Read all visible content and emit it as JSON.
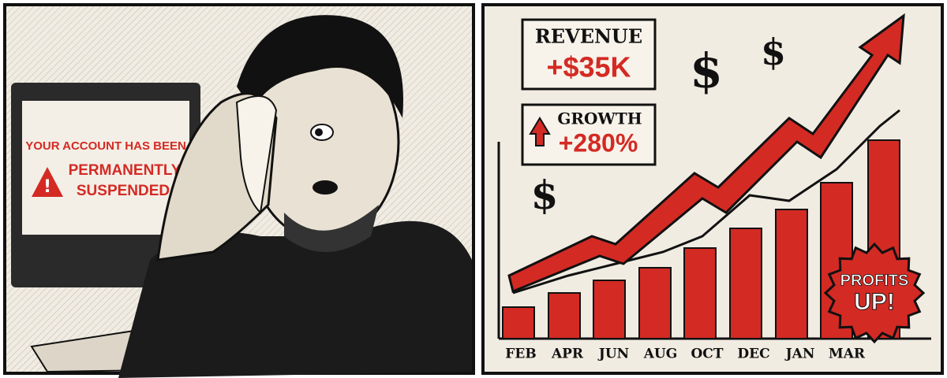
{
  "left_panel": {
    "screen": {
      "line1": "YOUR ACCOUNT HAS BEEN",
      "line2": "PERMANENTLY",
      "line3": "SUSPENDED"
    }
  },
  "right_panel": {
    "revenue": {
      "label": "REVENUE",
      "value": "+$35K"
    },
    "growth": {
      "label": "GROWTH",
      "value": "+280%"
    },
    "dollar_signs": [
      "$",
      "$",
      "$"
    ],
    "months": [
      "FEB",
      "APR",
      "JUN",
      "AUG",
      "OCT",
      "DEC",
      "JAN",
      "MAR"
    ],
    "badge": {
      "line1": "PROFITS",
      "line2": "UP!"
    }
  }
}
